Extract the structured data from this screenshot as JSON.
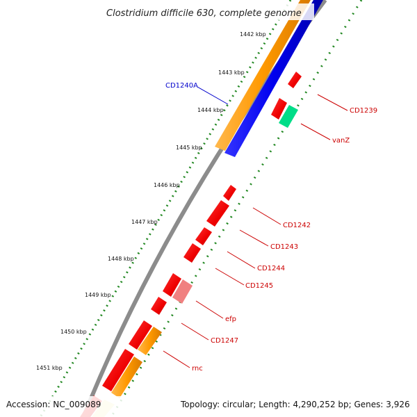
{
  "title": "Clostridium difficile 630, complete genome",
  "footer": {
    "accession": "Accession: NC_009089",
    "topology": "Topology: circular; Length: 4,290,252 bp; Genes: 3,926"
  },
  "ticks": [
    "1442 kbp",
    "1443 kbp",
    "1444 kbp",
    "1445 kbp",
    "1446 kbp",
    "1447 kbp",
    "1448 kbp",
    "1449 kbp",
    "1450 kbp",
    "1451 kbp"
  ],
  "labels": [
    {
      "id": "CD1240A",
      "color": "#0000cc"
    },
    {
      "id": "CD1239",
      "color": "#cc0000"
    },
    {
      "id": "vanZ",
      "color": "#cc0000"
    },
    {
      "id": "CD1242",
      "color": "#cc0000"
    },
    {
      "id": "CD1243",
      "color": "#cc0000"
    },
    {
      "id": "CD1244",
      "color": "#cc0000"
    },
    {
      "id": "CD1245",
      "color": "#cc0000"
    },
    {
      "id": "efp",
      "color": "#cc0000"
    },
    {
      "id": "CD1247",
      "color": "#cc0000"
    },
    {
      "id": "rnc",
      "color": "#cc0000"
    }
  ],
  "colors": {
    "red": "#ff0000",
    "orange": "#ff9900",
    "blue": "#0000ee",
    "green": "#00dd88",
    "pink": "#f08080",
    "yellow": "#f5eeaa",
    "backbone": "#8c8c8c",
    "dots": "#228822"
  }
}
